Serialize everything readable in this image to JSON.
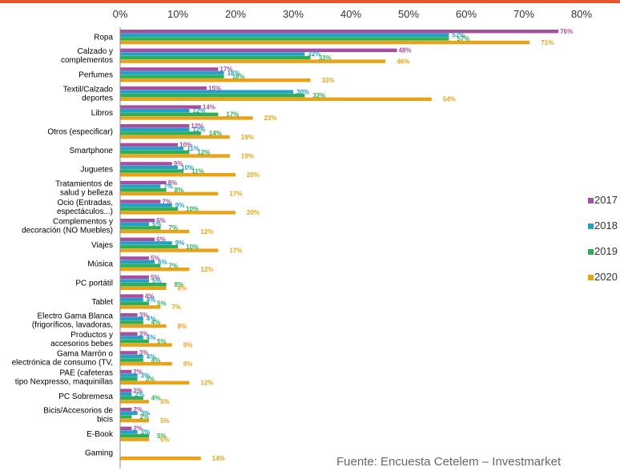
{
  "colors": {
    "2017": "#A64FA0",
    "2018": "#23A0C8",
    "2019": "#2FAF55",
    "2020": "#E8A317",
    "accent": "#E8542F"
  },
  "source": "Fuente: Encuesta Cetelem – Investmarket",
  "chart_data": {
    "type": "bar",
    "orientation": "horizontal",
    "xlim": [
      0,
      80
    ],
    "x_ticks": [
      "0%",
      "10%",
      "20%",
      "30%",
      "40%",
      "50%",
      "60%",
      "70%",
      "80%"
    ],
    "legend_position": "right",
    "categories": [
      [
        "Ropa"
      ],
      [
        "Calzado y",
        "complementos"
      ],
      [
        "Perfumes"
      ],
      [
        "Textil/Calzado",
        "deportes"
      ],
      [
        "Libros"
      ],
      [
        "Otros (especificar)"
      ],
      [
        "Smartphone"
      ],
      [
        "Juguetes"
      ],
      [
        "Tratamientos de",
        "salud y belleza"
      ],
      [
        "Ocio (Entradas,",
        "espectáculos...)"
      ],
      [
        "Complementos y",
        "decoración (NO Muebles)"
      ],
      [
        "Viajes"
      ],
      [
        "Música"
      ],
      [
        "PC portátil"
      ],
      [
        "Tablet"
      ],
      [
        "Electro Gama Blanca",
        "(frigoríficos, lavadoras,"
      ],
      [
        "Productos y",
        "accesorios bebes"
      ],
      [
        "Gama Marrón o",
        "electrónica de consumo (TV,"
      ],
      [
        "PAE (cafeteras",
        "tipo Nexpresso, maquinillas"
      ],
      [
        "PC Sobremesa"
      ],
      [
        "Bicis/Accesorios de",
        "bicis"
      ],
      [
        "E-Book"
      ],
      [
        "Gaming"
      ]
    ],
    "series": [
      {
        "name": "2017",
        "values": [
          76,
          48,
          17,
          15,
          14,
          12,
          10,
          9,
          8,
          7,
          6,
          6,
          5,
          5,
          4,
          3,
          3,
          3,
          2,
          2,
          2,
          2,
          null
        ]
      },
      {
        "name": "2018",
        "values": [
          57,
          32,
          18,
          30,
          12,
          12,
          11,
          10,
          7,
          9,
          5,
          9,
          6,
          5,
          4,
          4,
          4,
          4,
          3,
          2,
          3,
          3,
          null
        ]
      },
      {
        "name": "2019",
        "values": [
          57,
          33,
          18,
          32,
          17,
          14,
          12,
          11,
          8,
          10,
          7,
          10,
          7,
          8,
          5,
          4,
          5,
          4,
          3,
          4,
          2,
          5,
          null
        ]
      },
      {
        "name": "2020",
        "values": [
          71,
          46,
          33,
          54,
          23,
          19,
          19,
          20,
          17,
          20,
          12,
          17,
          12,
          8,
          7,
          8,
          9,
          9,
          12,
          5,
          5,
          5,
          14
        ]
      }
    ],
    "data_labels": [
      [
        "76%",
        "57%",
        "57%",
        "71%"
      ],
      [
        "48%",
        "32%",
        "33%",
        "46%"
      ],
      [
        "17%",
        "18%",
        "18%",
        "33%"
      ],
      [
        "15%",
        "30%",
        "32%",
        "54%"
      ],
      [
        "14%",
        "12%",
        "17%",
        "23%"
      ],
      [
        "12%",
        "12%",
        "14%",
        "19%"
      ],
      [
        "10%",
        "11%",
        "12%",
        "19%"
      ],
      [
        "9%",
        "10%",
        "11%",
        "20%"
      ],
      [
        "8%",
        "7%",
        "8%",
        "17%"
      ],
      [
        "7%",
        "9%",
        "10%",
        "20%"
      ],
      [
        "6%",
        "5%",
        "7%",
        "12%"
      ],
      [
        "6%",
        "9%",
        "10%",
        "17%"
      ],
      [
        "5%",
        "6%",
        "7%",
        "12%"
      ],
      [
        "5%",
        "5%",
        "8%",
        "8%"
      ],
      [
        "4%",
        "4%",
        "5%",
        "7%"
      ],
      [
        "3%",
        "4%",
        "4%",
        "8%"
      ],
      [
        "3%",
        "4%",
        "5%",
        "9%"
      ],
      [
        "3%",
        "4%",
        "4%",
        "9%"
      ],
      [
        "2%",
        "3%",
        "3%",
        "12%"
      ],
      [
        "2%",
        "2%",
        "4%",
        "5%"
      ],
      [
        "2%",
        "3%",
        "2%",
        "5%"
      ],
      [
        "2%",
        "3%",
        "5%",
        "5%"
      ],
      [
        "",
        "",
        "",
        "14%"
      ]
    ]
  }
}
